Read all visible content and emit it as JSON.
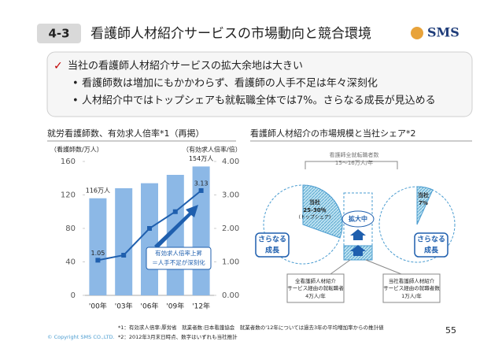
{
  "header": {
    "section": "4-3",
    "title": "看護師人材紹介サービスの市場動向と競合環境",
    "logo": "SMS"
  },
  "summary": {
    "headline": "当社の看護師人材紹介サービスの拡大余地は大きい",
    "bullets": [
      "看護師数は増加にもかかわらず、看護師の人手不足は年々深刻化",
      "人材紹介中ではトップシェアも就転職全体では7%。さらなる成長が見込める"
    ]
  },
  "chart_data": {
    "type": "bar",
    "title": "就労看護師数、有効求人倍率*1（再掲）",
    "y_label": "（看護師数/万人）",
    "y2_label": "（有効求人倍率/倍）",
    "categories": [
      "'00年",
      "'03年",
      "'06年",
      "'09年",
      "'12年"
    ],
    "series": [
      {
        "type": "bar",
        "color": "#8cb8e6",
        "values": [
          116,
          128,
          134,
          144,
          154
        ],
        "value_labels": [
          "116万人",
          null,
          null,
          null,
          "154万人"
        ]
      },
      {
        "type": "line",
        "axis": "y2",
        "color": "#1f5fae",
        "values": [
          1.05,
          1.2,
          2.0,
          2.5,
          3.13
        ],
        "value_labels": [
          "1.05",
          null,
          null,
          null,
          "3.13"
        ]
      }
    ],
    "ylim": [
      0,
      160
    ],
    "yticks": [
      0,
      40,
      80,
      120,
      160
    ],
    "y2lim": [
      0,
      4
    ],
    "y2ticks": [
      {
        "value": 0,
        "label": "0.00"
      },
      {
        "value": 1,
        "label": "1.00"
      },
      {
        "value": 2,
        "label": "2.00"
      },
      {
        "value": 3,
        "label": "3.00"
      },
      {
        "value": 4,
        "label": "4.00"
      }
    ],
    "grid": false,
    "annotation": [
      "有効求人倍率上昇",
      "＝人手不足が深刻化"
    ]
  },
  "diagram": {
    "title": "看護師人材紹介の市場規模と当社シェア*2",
    "total": [
      "看護師全就転職者数",
      "15～16万人/年"
    ],
    "left_share": [
      "当社",
      "25-30％",
      "(トップシェア)"
    ],
    "expanding": "拡大中",
    "right_share": [
      "当社",
      "7%"
    ],
    "growth": [
      "さらなる",
      "成長"
    ],
    "left_box": [
      "全看護師人材紹介",
      "サービス経由の就転職者",
      "4万人/年"
    ],
    "right_box": [
      "当社看護師人材紹介",
      "サービス経由の就職者数",
      "1万人/年"
    ]
  },
  "footnotes": [
    "*1：有効求人倍率:厚労省　就業者数:日本看護協会　就業者数の'12年については過去3年の平均増加率からの推計値",
    "*2：2012年3月末日時点、数字はいずれも当社推計"
  ],
  "copyright": "© Copyright SMS CO.,LTD.",
  "page": 55
}
